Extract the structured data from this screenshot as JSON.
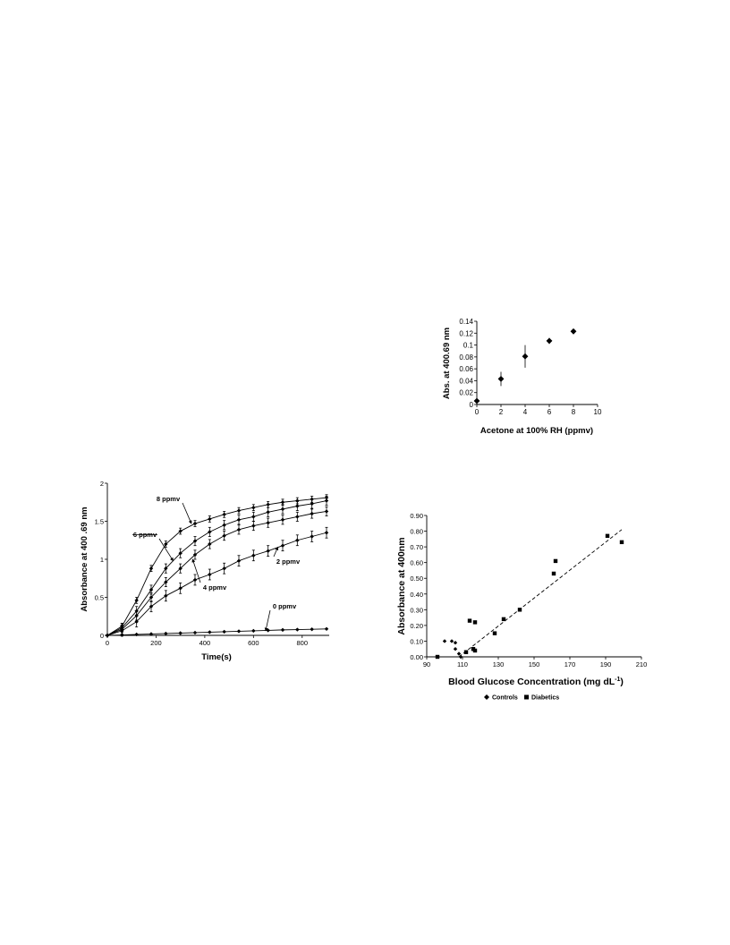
{
  "chart_data": [
    {
      "id": "acetone",
      "type": "scatter",
      "xlabel": "Acetone at 100% RH (ppmv)",
      "ylabel": "Abs. at 400.69 nm",
      "xlim": [
        0,
        10
      ],
      "ylim": [
        0,
        0.14
      ],
      "x_ticks": [
        "0",
        "2",
        "4",
        "6",
        "8",
        "10"
      ],
      "y_ticks": [
        "0",
        "0.02",
        "0.04",
        "0.06",
        "0.08",
        "0.1",
        "0.12",
        "0.14"
      ],
      "marker": "diamond",
      "grid": false,
      "points": [
        {
          "x": 0,
          "y": 0.006,
          "err": 0.003
        },
        {
          "x": 2,
          "y": 0.043,
          "err": 0.012
        },
        {
          "x": 4,
          "y": 0.081,
          "err": 0.019
        },
        {
          "x": 6,
          "y": 0.107,
          "err": 0.005
        },
        {
          "x": 8,
          "y": 0.123,
          "err": 0.002
        }
      ]
    },
    {
      "id": "kinetics",
      "type": "line",
      "xlabel": "Time(s)",
      "ylabel": "Absorbance at 400 .69 nm",
      "xlim": [
        0,
        900
      ],
      "ylim": [
        0,
        2
      ],
      "x_ticks": [
        "0",
        "200",
        "400",
        "600",
        "800"
      ],
      "y_ticks": [
        "0",
        "0.5",
        "1",
        "1.5",
        "2"
      ],
      "x": [
        0,
        60,
        120,
        180,
        240,
        300,
        360,
        420,
        480,
        540,
        600,
        660,
        720,
        780,
        840,
        900
      ],
      "series": [
        {
          "label": "8 ppmv",
          "values": [
            0,
            0.12,
            0.46,
            0.88,
            1.2,
            1.37,
            1.47,
            1.53,
            1.59,
            1.64,
            1.68,
            1.72,
            1.75,
            1.77,
            1.79,
            1.81
          ],
          "err": 0.04
        },
        {
          "label": "6 ppmv",
          "values": [
            0,
            0.1,
            0.32,
            0.6,
            0.88,
            1.08,
            1.24,
            1.36,
            1.45,
            1.52,
            1.56,
            1.62,
            1.66,
            1.7,
            1.73,
            1.77
          ],
          "err": 0.06
        },
        {
          "label": "",
          "values": [
            0,
            0.08,
            0.26,
            0.5,
            0.7,
            0.88,
            1.06,
            1.2,
            1.31,
            1.39,
            1.44,
            1.48,
            1.52,
            1.56,
            1.6,
            1.63
          ],
          "err": 0.06
        },
        {
          "label": "2 ppmv",
          "values": [
            0,
            0.06,
            0.18,
            0.38,
            0.52,
            0.62,
            0.73,
            0.8,
            0.88,
            0.98,
            1.05,
            1.11,
            1.18,
            1.25,
            1.3,
            1.35
          ],
          "err": 0.07
        },
        {
          "label": "0 ppmv",
          "values": [
            0,
            0.005,
            0.012,
            0.018,
            0.024,
            0.03,
            0.036,
            0.042,
            0.048,
            0.054,
            0.06,
            0.066,
            0.072,
            0.076,
            0.08,
            0.085
          ],
          "err": 0.005
        }
      ],
      "annotations": [
        {
          "text": "8 ppmv",
          "target": [
            345,
            1.47
          ]
        },
        {
          "text": "6 ppmv",
          "target": [
            270,
            0.98
          ]
        },
        {
          "text": "4 ppmv",
          "target": [
            350,
            1.0
          ]
        },
        {
          "text": "2 ppmv",
          "target": [
            700,
            1.16
          ]
        },
        {
          "text": "0 ppmv",
          "target": [
            650,
            0.06
          ]
        }
      ]
    },
    {
      "id": "glucose",
      "type": "scatter",
      "xlabel": "Blood Glucose Concentration (mg dL",
      "xlabel_sup": "-1",
      "xlabel_close": ")",
      "ylabel": "Absorbance at 400nm",
      "xlim": [
        90,
        210
      ],
      "ylim": [
        0,
        0.9
      ],
      "x_ticks": [
        "90",
        "110",
        "130",
        "150",
        "170",
        "190",
        "210"
      ],
      "y_ticks": [
        "0.00",
        "0.10",
        "0.20",
        "0.30",
        "0.40",
        "0.50",
        "0.60",
        "0.70",
        "0.80",
        "0.90"
      ],
      "legend_position": "bottom",
      "series": [
        {
          "name": "Controls",
          "marker": "diamond",
          "points": [
            [
              100,
              0.1
            ],
            [
              104,
              0.1
            ],
            [
              106,
              0.09
            ],
            [
              106,
              0.05
            ],
            [
              108,
              0.02
            ],
            [
              109,
              0.0
            ]
          ]
        },
        {
          "name": "Diabetics",
          "marker": "square",
          "points": [
            [
              96,
              0.0
            ],
            [
              112,
              0.03
            ],
            [
              114,
              0.23
            ],
            [
              116,
              0.05
            ],
            [
              117,
              0.04
            ],
            [
              117,
              0.22
            ],
            [
              128,
              0.15
            ],
            [
              133,
              0.24
            ],
            [
              142,
              0.3
            ],
            [
              161,
              0.53
            ],
            [
              162,
              0.61
            ],
            [
              191,
              0.77
            ],
            [
              199,
              0.73
            ]
          ]
        }
      ],
      "trendline": {
        "x": [
          108,
          199
        ],
        "y": [
          0.0,
          0.81
        ],
        "style": "dashed"
      }
    }
  ]
}
